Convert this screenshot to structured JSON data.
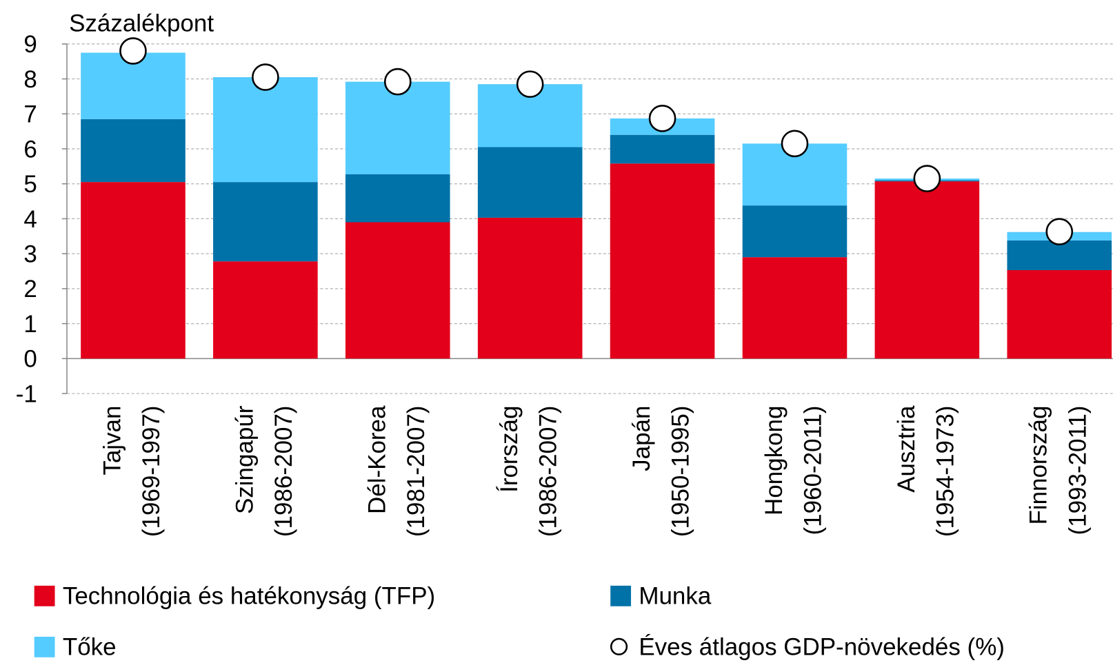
{
  "chart_data": {
    "type": "bar",
    "stacked": true,
    "title": "Százalékpont",
    "categories": [
      [
        "Tajvan",
        "(1969-1997)"
      ],
      [
        "Szingapúr",
        "(1986-2007)"
      ],
      [
        "Dél-Korea",
        "(1981-2007)"
      ],
      [
        "Írország",
        "(1986-2007)"
      ],
      [
        "Japán",
        "(1950-1995)"
      ],
      [
        "Hongkong",
        "(1960-2011)"
      ],
      [
        "Ausztria",
        "(1954-1973)"
      ],
      [
        "Finnország",
        "(1993-2011)"
      ]
    ],
    "series": [
      {
        "name": "Technológia és hatékonyság (TFP)",
        "color": "#e2001a",
        "type": "bar",
        "values": [
          5.05,
          2.78,
          3.9,
          4.03,
          5.58,
          2.9,
          5.07,
          2.53
        ]
      },
      {
        "name": "Munka",
        "color": "#0072a8",
        "type": "bar",
        "values": [
          1.8,
          2.27,
          1.37,
          2.02,
          0.82,
          1.48,
          0.03,
          0.85
        ]
      },
      {
        "name": "Tőke",
        "color": "#55ccff",
        "type": "bar",
        "values": [
          1.9,
          3.0,
          2.65,
          1.8,
          0.47,
          1.77,
          0.05,
          0.24
        ]
      },
      {
        "name": "Éves átlagos GDP-növekedés (%)",
        "color": "#ffffff",
        "type": "marker",
        "values": [
          8.8,
          8.05,
          7.92,
          7.85,
          6.87,
          6.15,
          5.15,
          3.63
        ]
      }
    ],
    "ylim": [
      -1,
      9
    ],
    "yticks": [
      -1,
      0,
      1,
      2,
      3,
      4,
      5,
      6,
      7,
      8,
      9
    ],
    "grid": true
  }
}
